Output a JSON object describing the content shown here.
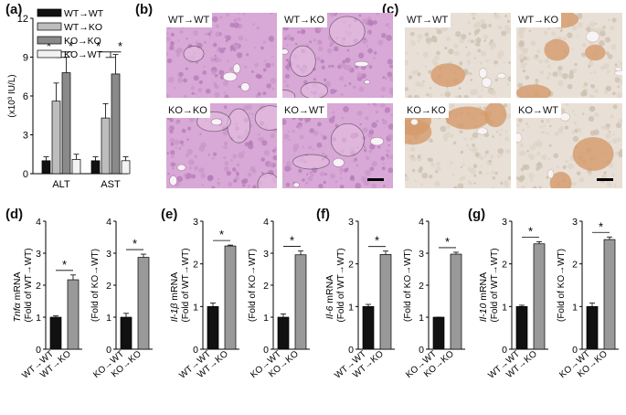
{
  "labels": {
    "a": "(a)",
    "b": "(b)",
    "c": "(c)",
    "d": "(d)",
    "e": "(e)",
    "f": "(f)",
    "g": "(g)"
  },
  "colors": {
    "wt_wt": "#111111",
    "wt_ko": "#bdbdbd",
    "ko_ko": "#8a8a8a",
    "ko_wt": "#f2f2f2",
    "he_stain": "#d8a8d6",
    "ihc_stain": "#e8e0d6"
  },
  "micrographs": {
    "b": [
      "WT→WT",
      "WT→KO",
      "KO→KO",
      "KO→WT"
    ],
    "c": [
      "WT→WT",
      "WT→KO",
      "KO→KO",
      "KO→WT"
    ]
  },
  "chart_data": [
    {
      "id": "a",
      "type": "bar",
      "categories": [
        "ALT",
        "AST"
      ],
      "series": [
        {
          "name": "WT→WT",
          "values": [
            1.0,
            1.0
          ],
          "errors": [
            0.3,
            0.3
          ]
        },
        {
          "name": "WT→KO",
          "values": [
            5.6,
            4.3
          ],
          "errors": [
            1.4,
            1.1
          ]
        },
        {
          "name": "KO→KO",
          "values": [
            7.8,
            7.7
          ],
          "errors": [
            1.2,
            1.5
          ]
        },
        {
          "name": "KO→WT",
          "values": [
            1.1,
            1.0
          ],
          "errors": [
            0.4,
            0.3
          ]
        }
      ],
      "ylabel": "(x10³ IU/L)",
      "yticks": [
        "0",
        "3",
        "6",
        "9",
        "12"
      ],
      "ylim": [
        0,
        12
      ],
      "significance": [
        "*",
        "*",
        "*",
        "*"
      ],
      "legend": "top-left"
    },
    {
      "id": "d",
      "type": "bar",
      "gene": "Tnfα",
      "suffix": " mRNA",
      "left": {
        "ylabel": "(Fold of WT→WT)",
        "categories": [
          "WT→WT",
          "WT→KO"
        ],
        "values": [
          1.0,
          2.17
        ],
        "errors": [
          0.04,
          0.15
        ],
        "ylim": [
          0,
          4
        ],
        "yticks": [
          "0",
          "1",
          "2",
          "3",
          "4"
        ],
        "sig": "*"
      },
      "right": {
        "ylabel": "(Fold of KO→WT)",
        "categories": [
          "KO→WT",
          "KO→KO"
        ],
        "values": [
          1.0,
          2.87
        ],
        "errors": [
          0.12,
          0.1
        ],
        "ylim": [
          0,
          4
        ],
        "yticks": [
          "0",
          "1",
          "2",
          "3",
          "4"
        ],
        "sig": "*"
      }
    },
    {
      "id": "e",
      "type": "bar",
      "gene": "Il-1β",
      "suffix": " mRNA",
      "left": {
        "ylabel": "(Fold of WT→WT)",
        "categories": [
          "WT→WT",
          "WT→KO"
        ],
        "values": [
          1.0,
          2.42
        ],
        "errors": [
          0.08,
          0.02
        ],
        "ylim": [
          0,
          3
        ],
        "yticks": [
          "0",
          "1",
          "2",
          "3"
        ],
        "sig": "*"
      },
      "right": {
        "ylabel": "(Fold of KO→WT)",
        "categories": [
          "KO→WT",
          "KO→KO"
        ],
        "values": [
          1.0,
          2.95
        ],
        "errors": [
          0.1,
          0.12
        ],
        "ylim": [
          0,
          4
        ],
        "yticks": [
          "0",
          "1",
          "2",
          "3",
          "4"
        ],
        "sig": "*"
      }
    },
    {
      "id": "f",
      "type": "bar",
      "gene": "Il-6",
      "suffix": " mRNA",
      "left": {
        "ylabel": "(Fold of WT→WT)",
        "categories": [
          "WT→WT",
          "WT→KO"
        ],
        "values": [
          1.0,
          2.22
        ],
        "errors": [
          0.05,
          0.08
        ],
        "ylim": [
          0,
          3
        ],
        "yticks": [
          "0",
          "1",
          "2",
          "3"
        ],
        "sig": "*"
      },
      "right": {
        "ylabel": "(Fold of KO→WT)",
        "categories": [
          "KO→WT",
          "KO→KO"
        ],
        "values": [
          1.0,
          2.97
        ],
        "errors": [
          0.0,
          0.06
        ],
        "ylim": [
          0,
          4
        ],
        "yticks": [
          "0",
          "1",
          "2",
          "3",
          "4"
        ],
        "sig": "*"
      }
    },
    {
      "id": "g",
      "type": "bar",
      "gene": "Il-10",
      "suffix": " mRNA",
      "left": {
        "ylabel": "(Fold of WT→WT)",
        "categories": [
          "WT→WT",
          "WT→KO"
        ],
        "values": [
          1.0,
          2.47
        ],
        "errors": [
          0.03,
          0.05
        ],
        "ylim": [
          0,
          3
        ],
        "yticks": [
          "0",
          "1",
          "2",
          "3"
        ],
        "sig": "*"
      },
      "right": {
        "ylabel": "(Fold of KO→WT)",
        "categories": [
          "KO→WT",
          "KO→KO"
        ],
        "values": [
          1.0,
          2.57
        ],
        "errors": [
          0.08,
          0.06
        ],
        "ylim": [
          0,
          3
        ],
        "yticks": [
          "0",
          "1",
          "2",
          "3"
        ],
        "sig": "*"
      }
    }
  ]
}
